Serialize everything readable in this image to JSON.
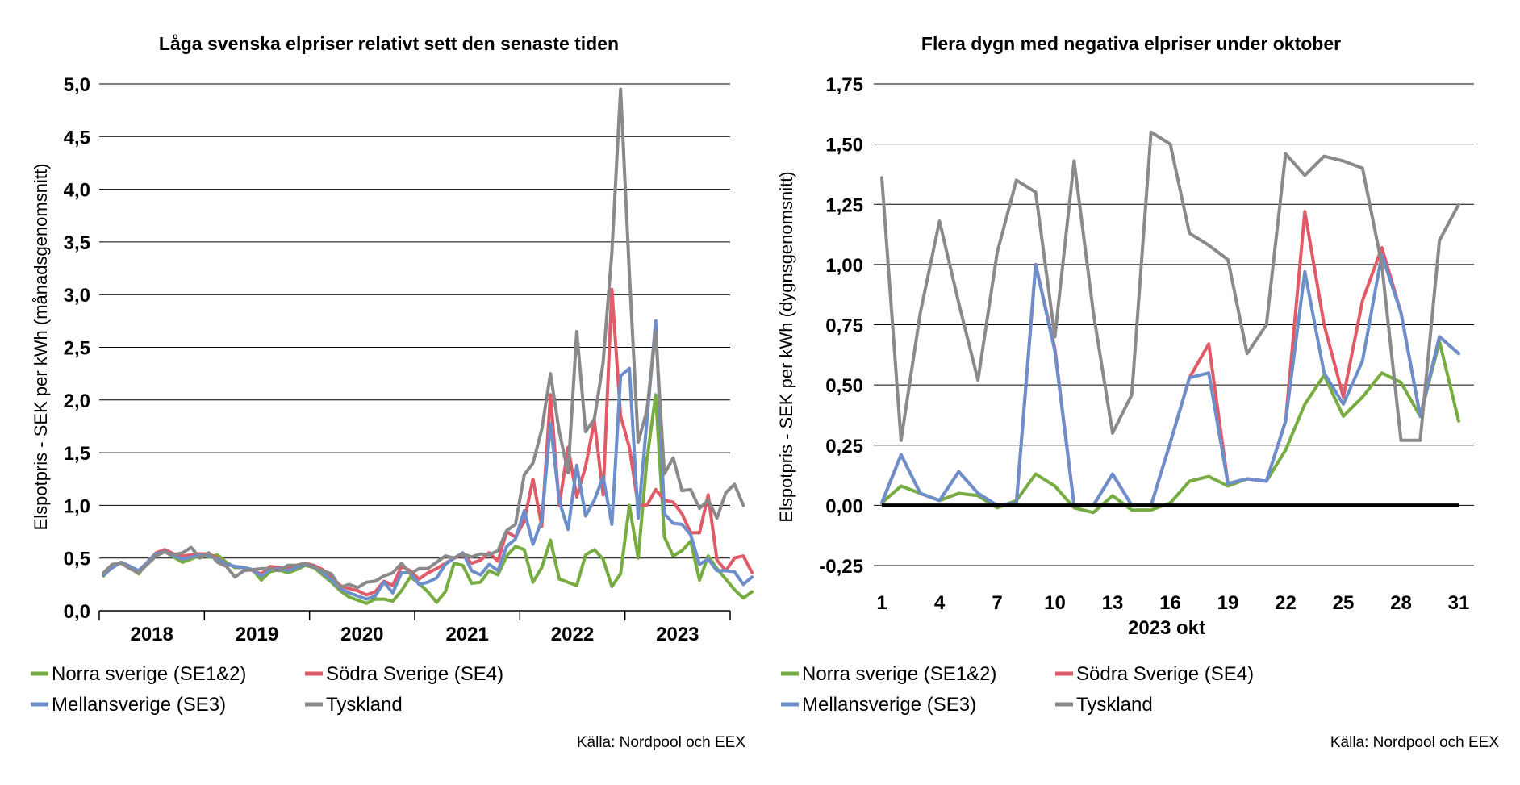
{
  "colors": {
    "norra": "#77ac41",
    "sodra": "#e05a68",
    "mellan": "#6c8fcc",
    "tyskland": "#8a8a8a",
    "zero_line": "#000000",
    "grid": "#000000"
  },
  "chart_data": [
    {
      "type": "line",
      "title": "Låga svenska elpriser relativt sett den senaste tiden",
      "ylabel": "Elspotpris - SEK per kWh (månadsgenomsnitt)",
      "xlabel": "",
      "ylim": [
        0,
        5
      ],
      "yticks": [
        "0,0",
        "0,5",
        "1,0",
        "1,5",
        "2,0",
        "2,5",
        "3,0",
        "3,5",
        "4,0",
        "4,5",
        "5,0"
      ],
      "xcategories": [
        "2018",
        "2019",
        "2020",
        "2021",
        "2022",
        "2023"
      ],
      "months_per_category": 12,
      "x_start": "2018-01",
      "grid": true,
      "legend": "bottom",
      "source": "Källa: Nordpool och EEX",
      "series": [
        {
          "name": "Norra sverige (SE1&2)",
          "color_key": "norra",
          "values": [
            0.33,
            0.42,
            0.46,
            0.41,
            0.35,
            0.46,
            0.54,
            0.56,
            0.51,
            0.46,
            0.49,
            0.53,
            0.51,
            0.53,
            0.46,
            0.41,
            0.41,
            0.39,
            0.29,
            0.37,
            0.39,
            0.36,
            0.39,
            0.43,
            0.41,
            0.34,
            0.27,
            0.19,
            0.13,
            0.1,
            0.07,
            0.11,
            0.11,
            0.09,
            0.19,
            0.32,
            0.26,
            0.18,
            0.08,
            0.18,
            0.45,
            0.43,
            0.26,
            0.27,
            0.38,
            0.34,
            0.52,
            0.61,
            0.58,
            0.27,
            0.41,
            0.67,
            0.3,
            0.27,
            0.24,
            0.53,
            0.58,
            0.49,
            0.23,
            0.35,
            1.0,
            0.5,
            1.43,
            2.05,
            0.7,
            0.52,
            0.57,
            0.66,
            0.29,
            0.52,
            0.4,
            0.3,
            0.2,
            0.12,
            0.18
          ]
        },
        {
          "name": "Södra Sverige (SE4)",
          "color_key": "sodra",
          "values": [
            0.34,
            0.41,
            0.46,
            0.42,
            0.38,
            0.46,
            0.55,
            0.58,
            0.54,
            0.52,
            0.53,
            0.54,
            0.54,
            0.5,
            0.44,
            0.42,
            0.41,
            0.38,
            0.35,
            0.42,
            0.41,
            0.4,
            0.43,
            0.45,
            0.43,
            0.39,
            0.32,
            0.24,
            0.21,
            0.19,
            0.15,
            0.18,
            0.28,
            0.24,
            0.42,
            0.38,
            0.3,
            0.36,
            0.4,
            0.45,
            0.5,
            0.53,
            0.45,
            0.48,
            0.55,
            0.47,
            0.75,
            0.7,
            0.85,
            1.25,
            0.8,
            2.05,
            1.0,
            1.55,
            1.08,
            1.37,
            1.8,
            1.1,
            3.05,
            1.85,
            1.55,
            1.0,
            1.0,
            1.15,
            1.05,
            1.03,
            0.92,
            0.74,
            0.74,
            1.1,
            0.48,
            0.38,
            0.5,
            0.52,
            0.36
          ]
        },
        {
          "name": "Mellansverige (SE3)",
          "color_key": "mellan",
          "values": [
            0.34,
            0.41,
            0.46,
            0.42,
            0.38,
            0.46,
            0.54,
            0.56,
            0.52,
            0.49,
            0.51,
            0.53,
            0.52,
            0.49,
            0.44,
            0.42,
            0.41,
            0.39,
            0.33,
            0.39,
            0.4,
            0.38,
            0.41,
            0.44,
            0.42,
            0.36,
            0.29,
            0.21,
            0.17,
            0.14,
            0.11,
            0.14,
            0.27,
            0.17,
            0.36,
            0.36,
            0.25,
            0.27,
            0.31,
            0.44,
            0.5,
            0.55,
            0.38,
            0.34,
            0.44,
            0.38,
            0.61,
            0.68,
            0.95,
            0.63,
            0.86,
            1.78,
            1.04,
            0.77,
            1.38,
            0.9,
            1.05,
            1.27,
            0.82,
            2.23,
            2.3,
            0.88,
            1.8,
            2.75,
            0.92,
            0.83,
            0.82,
            0.72,
            0.44,
            0.49,
            0.38,
            0.38,
            0.37,
            0.25,
            0.32
          ]
        },
        {
          "name": "Tyskland",
          "color_key": "tyskland",
          "values": [
            0.36,
            0.44,
            0.45,
            0.4,
            0.36,
            0.44,
            0.52,
            0.56,
            0.53,
            0.55,
            0.6,
            0.5,
            0.55,
            0.46,
            0.42,
            0.32,
            0.38,
            0.39,
            0.4,
            0.4,
            0.38,
            0.43,
            0.43,
            0.45,
            0.41,
            0.38,
            0.35,
            0.22,
            0.25,
            0.22,
            0.27,
            0.28,
            0.33,
            0.36,
            0.45,
            0.35,
            0.4,
            0.4,
            0.46,
            0.52,
            0.5,
            0.54,
            0.51,
            0.54,
            0.53,
            0.57,
            0.76,
            0.82,
            1.29,
            1.4,
            1.72,
            2.25,
            1.7,
            1.31,
            2.65,
            1.7,
            1.82,
            2.35,
            3.4,
            4.95,
            3.2,
            1.6,
            1.9,
            2.65,
            1.3,
            1.45,
            1.14,
            1.15,
            0.97,
            1.05,
            0.88,
            1.12,
            1.2,
            1.0
          ]
        }
      ]
    },
    {
      "type": "line",
      "title": "Flera dygn med negativa elpriser under oktober",
      "ylabel": "Elspotpris - SEK per kWh (dygnsgenomsnitt)",
      "xlabel": "2023 okt",
      "ylim": [
        -0.25,
        1.75
      ],
      "yticks": [
        "-0,25",
        "0,00",
        "0,25",
        "0,50",
        "0,75",
        "1,00",
        "1,25",
        "1,50",
        "1,75"
      ],
      "xticks": [
        "1",
        "4",
        "7",
        "10",
        "13",
        "16",
        "19",
        "22",
        "25",
        "28",
        "31"
      ],
      "x": [
        1,
        2,
        3,
        4,
        5,
        6,
        7,
        8,
        9,
        10,
        11,
        12,
        13,
        14,
        15,
        16,
        17,
        18,
        19,
        20,
        21,
        22,
        23,
        24,
        25,
        26,
        27,
        28,
        29,
        30,
        31
      ],
      "grid": true,
      "legend": "bottom",
      "source": "Källa: Nordpool och EEX",
      "series": [
        {
          "name": "Norra sverige (SE1&2)",
          "color_key": "norra",
          "values": [
            0.01,
            0.08,
            0.05,
            0.02,
            0.05,
            0.04,
            -0.01,
            0.02,
            0.13,
            0.08,
            -0.01,
            -0.03,
            0.04,
            -0.02,
            -0.02,
            0.01,
            0.1,
            0.12,
            0.08,
            0.11,
            0.1,
            0.23,
            0.42,
            0.54,
            0.37,
            0.45,
            0.55,
            0.51,
            0.37,
            0.68,
            0.35
          ]
        },
        {
          "name": "Södra Sverige (SE4)",
          "color_key": "sodra",
          "values": [
            0.01,
            0.21,
            0.05,
            0.02,
            0.14,
            0.05,
            0.0,
            0.01,
            1.0,
            0.65,
            0.0,
            0.0,
            0.13,
            0.0,
            0.0,
            0.26,
            0.53,
            0.67,
            0.09,
            0.11,
            0.1,
            0.35,
            1.22,
            0.75,
            0.45,
            0.85,
            1.07,
            0.8,
            0.37,
            0.7,
            0.63
          ]
        },
        {
          "name": "Mellansverige (SE3)",
          "color_key": "mellan",
          "values": [
            0.01,
            0.21,
            0.05,
            0.02,
            0.14,
            0.05,
            0.0,
            0.01,
            1.0,
            0.64,
            0.0,
            0.0,
            0.13,
            0.0,
            0.0,
            0.26,
            0.53,
            0.55,
            0.09,
            0.11,
            0.1,
            0.35,
            0.97,
            0.55,
            0.42,
            0.6,
            1.04,
            0.8,
            0.37,
            0.7,
            0.63
          ]
        },
        {
          "name": "Tyskland",
          "color_key": "tyskland",
          "values": [
            1.36,
            0.27,
            0.8,
            1.18,
            0.84,
            0.52,
            1.05,
            1.35,
            1.3,
            0.7,
            1.43,
            0.8,
            0.3,
            0.46,
            1.55,
            1.5,
            1.13,
            1.08,
            1.02,
            0.63,
            0.75,
            1.46,
            1.37,
            1.45,
            1.43,
            1.4,
            1.0,
            0.27,
            0.27,
            1.1,
            1.25
          ]
        }
      ]
    }
  ]
}
